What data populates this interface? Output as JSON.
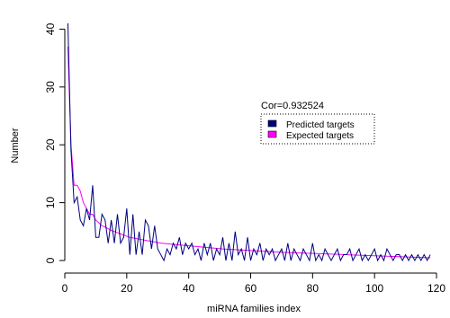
{
  "chart_data": {
    "type": "line",
    "title": "",
    "xlabel": "miRNA families index",
    "ylabel": "Number",
    "xlim": [
      0,
      120
    ],
    "ylim": [
      0,
      41
    ],
    "x_ticks": [
      0,
      20,
      40,
      60,
      80,
      100,
      120
    ],
    "y_ticks": [
      0,
      10,
      20,
      30,
      40
    ],
    "grid": false,
    "legend": {
      "position": "top-right",
      "bordered": "dotted"
    },
    "annotation": "Cor=0.932524",
    "series": [
      {
        "name": "Predicted targets",
        "color": "#000080",
        "x_start": 1,
        "values": [
          41,
          19,
          10,
          11,
          7,
          6,
          9,
          7,
          13,
          4,
          4,
          8,
          7,
          3,
          7,
          3,
          8,
          3,
          4,
          9,
          1,
          8,
          1,
          5,
          1,
          7,
          6,
          2,
          6,
          2,
          1,
          0,
          2,
          1,
          3,
          2,
          4,
          1,
          3,
          2,
          3,
          1,
          2,
          0,
          3,
          1,
          3,
          0,
          2,
          1,
          4,
          0,
          3,
          0,
          5,
          1,
          2,
          0,
          4,
          0,
          2,
          1,
          3,
          0,
          2,
          1,
          2,
          0,
          1,
          2,
          0,
          3,
          0,
          2,
          1,
          0,
          2,
          1,
          0,
          3,
          0,
          1,
          0,
          2,
          1,
          0,
          1,
          2,
          0,
          1,
          1,
          2,
          0,
          1,
          2,
          0,
          1,
          0,
          1,
          2,
          0,
          1,
          0,
          2,
          1,
          0,
          1,
          1,
          0,
          1,
          0,
          1,
          0,
          1,
          0,
          1,
          0,
          1
        ]
      },
      {
        "name": "Expected targets",
        "color": "#FF00FF",
        "x_start": 1,
        "values": [
          37,
          20,
          13,
          13,
          12,
          10,
          9,
          8,
          8,
          7,
          6.5,
          6,
          5.8,
          5.5,
          5.2,
          5,
          4.8,
          4.6,
          4.4,
          4.2,
          4,
          3.9,
          3.8,
          3.7,
          3.6,
          3.5,
          3.4,
          3.3,
          3.2,
          3.1,
          3,
          2.95,
          2.9,
          2.85,
          2.8,
          2.75,
          2.7,
          2.65,
          2.6,
          2.55,
          2.5,
          2.45,
          2.4,
          2.35,
          2.3,
          2.25,
          2.2,
          2.15,
          2.1,
          2.05,
          2,
          1.97,
          1.94,
          1.91,
          1.88,
          1.85,
          1.82,
          1.79,
          1.76,
          1.73,
          1.7,
          1.67,
          1.64,
          1.61,
          1.58,
          1.55,
          1.52,
          1.49,
          1.46,
          1.43,
          1.4,
          1.38,
          1.36,
          1.34,
          1.32,
          1.3,
          1.28,
          1.26,
          1.24,
          1.22,
          1.2,
          1.18,
          1.16,
          1.14,
          1.12,
          1.1,
          1.08,
          1.06,
          1.04,
          1.02,
          1,
          0.98,
          0.96,
          0.94,
          0.92,
          0.9,
          0.88,
          0.86,
          0.84,
          0.82,
          0.8,
          0.78,
          0.76,
          0.74,
          0.72,
          0.7,
          0.68,
          0.66,
          0.64,
          0.62,
          0.6,
          0.58,
          0.56,
          0.54,
          0.52,
          0.5,
          0.48,
          0.46
        ]
      }
    ]
  }
}
